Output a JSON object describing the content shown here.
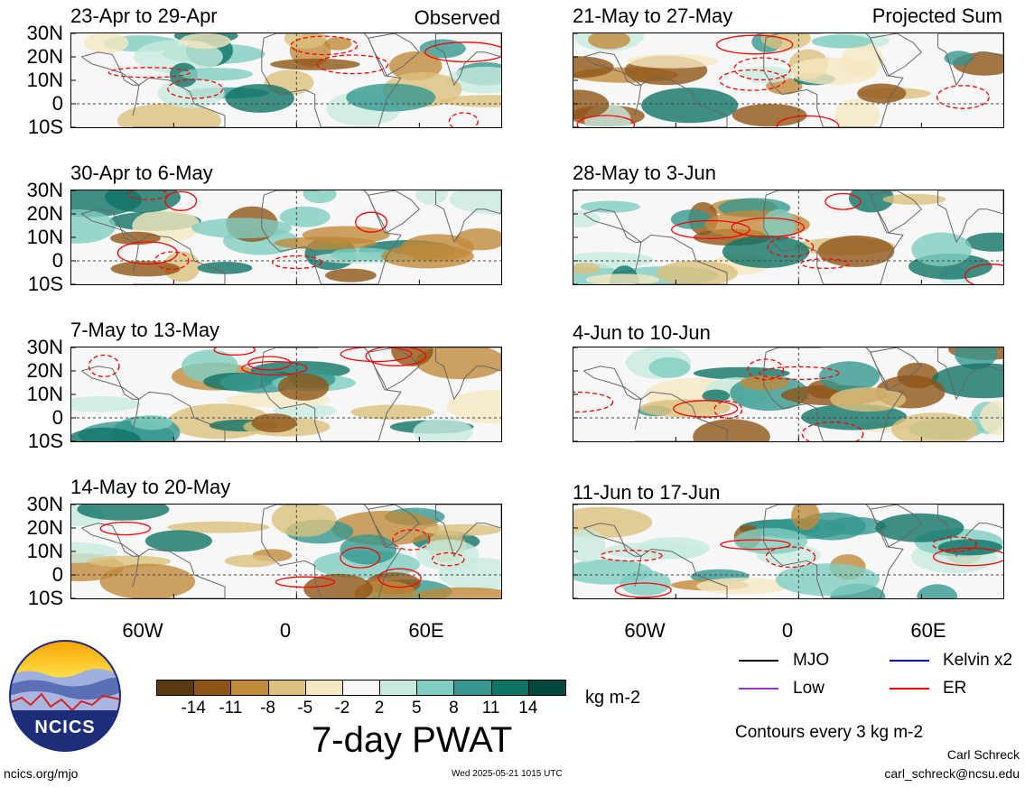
{
  "panels": [
    {
      "title": "23-Apr to 29-Apr",
      "tag": "Observed"
    },
    {
      "title": "21-May to 27-May",
      "tag": "Projected Sum"
    },
    {
      "title": "30-Apr to 6-May",
      "tag": ""
    },
    {
      "title": "28-May to 3-Jun",
      "tag": ""
    },
    {
      "title": "7-May to 13-May",
      "tag": ""
    },
    {
      "title": "4-Jun to 10-Jun",
      "tag": ""
    },
    {
      "title": "14-May to 20-May",
      "tag": ""
    },
    {
      "title": "11-Jun to 17-Jun",
      "tag": ""
    }
  ],
  "lat_labels": [
    "30N",
    "20N",
    "10N",
    "0",
    "10S"
  ],
  "lon_labels": [
    "60W",
    "0",
    "60E"
  ],
  "colorbar": {
    "colors": [
      "#5a3810",
      "#8e5516",
      "#c08a3a",
      "#dcc07d",
      "#f5e7c0",
      "#f7f7f7",
      "#c7eadf",
      "#80cdc1",
      "#35978f",
      "#0f7366",
      "#00493d"
    ],
    "ticks": [
      "-14",
      "-11",
      "-8",
      "-5",
      "-2",
      "2",
      "5",
      "8",
      "11",
      "14"
    ],
    "units": "kg m-2",
    "title": "7-day PWAT"
  },
  "legend": {
    "items": [
      {
        "label": "MJO",
        "color": "#000000"
      },
      {
        "label": "Kelvin x2",
        "color": "#0000ff"
      },
      {
        "label": "Low",
        "color": "#9933cc"
      },
      {
        "label": "ER",
        "color": "#ff0000"
      }
    ],
    "contours": "Contours every 3 kg m-2"
  },
  "footer": {
    "site": "ncics.org/mjo",
    "timestamp": "Wed 2025-05-21 1015 UTC",
    "author": "Carl Schreck",
    "email": "carl_schreck@ncsu.edu"
  },
  "logo": {
    "text": "NCICS"
  }
}
